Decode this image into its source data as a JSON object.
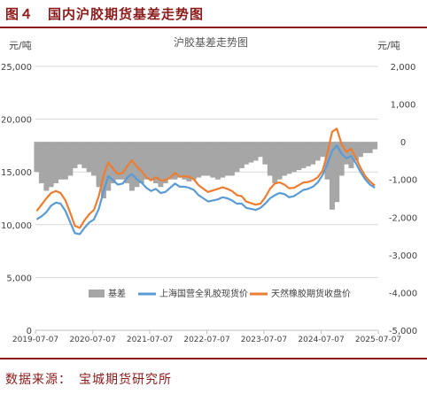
{
  "figure": {
    "title": "图４　国内沪胶期货基差走势图",
    "source": "数据来源：　宝城期货研究所"
  },
  "colors": {
    "brand": "#8b1a1a",
    "basis": "#a6a6a6",
    "spot": "#5b9bd5",
    "futures": "#ed7d31"
  },
  "chart_data": {
    "type": "line",
    "title": "沪胶基差走势图",
    "ylabel_left": "元/吨",
    "ylabel_right": "元/吨",
    "ylim_left": [
      0,
      25000
    ],
    "ylim_right": [
      -5000,
      2000
    ],
    "yticks_left": [
      "0",
      "5,000",
      "10,000",
      "15,000",
      "20,000",
      "25,000"
    ],
    "yticks_right": [
      "-5,000",
      "-4,000",
      "-3,000",
      "-2,000",
      "-1,000",
      "0",
      "1,000",
      "2,000"
    ],
    "x_ticks": [
      "2019-07-07",
      "2020-07-07",
      "2021-07-07",
      "2022-07-07",
      "2023-07-07",
      "2024-07-07",
      "2025-07-07"
    ],
    "x_range": [
      "2019-07-07",
      "2025-07-07"
    ],
    "legend_position": "bottom",
    "series": [
      {
        "name": "基差",
        "type": "area",
        "axis": "right",
        "x": [
          "2019-07",
          "2019-08",
          "2019-09",
          "2019-10",
          "2019-11",
          "2019-12",
          "2020-01",
          "2020-02",
          "2020-03",
          "2020-04",
          "2020-05",
          "2020-06",
          "2020-07",
          "2020-08",
          "2020-09",
          "2020-10",
          "2020-11",
          "2020-12",
          "2021-01",
          "2021-02",
          "2021-03",
          "2021-04",
          "2021-05",
          "2021-06",
          "2021-07",
          "2021-08",
          "2021-09",
          "2021-10",
          "2021-11",
          "2021-12",
          "2022-01",
          "2022-02",
          "2022-03",
          "2022-04",
          "2022-05",
          "2022-06",
          "2022-07",
          "2022-08",
          "2022-09",
          "2022-10",
          "2022-11",
          "2022-12",
          "2023-01",
          "2023-02",
          "2023-03",
          "2023-04",
          "2023-05",
          "2023-06",
          "2023-07",
          "2023-08",
          "2023-09",
          "2023-10",
          "2023-11",
          "2023-12",
          "2024-01",
          "2024-02",
          "2024-03",
          "2024-04",
          "2024-05",
          "2024-06",
          "2024-07",
          "2024-08",
          "2024-09",
          "2024-10",
          "2024-11",
          "2024-12",
          "2025-01",
          "2025-02",
          "2025-03",
          "2025-04",
          "2025-05",
          "2025-06"
        ],
        "values": [
          -800,
          -1100,
          -1300,
          -1200,
          -1100,
          -1000,
          -1000,
          -900,
          -700,
          -600,
          -700,
          -800,
          -900,
          -1200,
          -1500,
          -1300,
          -1100,
          -1000,
          -1000,
          -1100,
          -1300,
          -1200,
          -1100,
          -1000,
          -1000,
          -1100,
          -1200,
          -1100,
          -1000,
          -1000,
          -950,
          -1000,
          -1050,
          -1000,
          -950,
          -900,
          -900,
          -950,
          -1000,
          -950,
          -900,
          -900,
          -800,
          -700,
          -600,
          -550,
          -500,
          -400,
          -600,
          -900,
          -1100,
          -1000,
          -900,
          -850,
          -800,
          -750,
          -700,
          -650,
          -600,
          -500,
          -400,
          -1000,
          -1800,
          -1600,
          -900,
          -600,
          -700,
          -500,
          -400,
          -300,
          -300,
          -200
        ]
      },
      {
        "name": "上海国营全乳胶现货价",
        "type": "line",
        "axis": "left",
        "x": [
          "2019-07",
          "2019-08",
          "2019-09",
          "2019-10",
          "2019-11",
          "2019-12",
          "2020-01",
          "2020-02",
          "2020-03",
          "2020-04",
          "2020-05",
          "2020-06",
          "2020-07",
          "2020-08",
          "2020-09",
          "2020-10",
          "2020-11",
          "2020-12",
          "2021-01",
          "2021-02",
          "2021-03",
          "2021-04",
          "2021-05",
          "2021-06",
          "2021-07",
          "2021-08",
          "2021-09",
          "2021-10",
          "2021-11",
          "2021-12",
          "2022-01",
          "2022-02",
          "2022-03",
          "2022-04",
          "2022-05",
          "2022-06",
          "2022-07",
          "2022-08",
          "2022-09",
          "2022-10",
          "2022-11",
          "2022-12",
          "2023-01",
          "2023-02",
          "2023-03",
          "2023-04",
          "2023-05",
          "2023-06",
          "2023-07",
          "2023-08",
          "2023-09",
          "2023-10",
          "2023-11",
          "2023-12",
          "2024-01",
          "2024-02",
          "2024-03",
          "2024-04",
          "2024-05",
          "2024-06",
          "2024-07",
          "2024-08",
          "2024-09",
          "2024-10",
          "2024-11",
          "2024-12",
          "2025-01",
          "2025-02",
          "2025-03",
          "2025-04",
          "2025-05",
          "2025-06"
        ],
        "values": [
          10500,
          10800,
          11200,
          11800,
          12100,
          12000,
          11300,
          10200,
          9200,
          9100,
          9700,
          10200,
          10500,
          11500,
          13200,
          14600,
          14200,
          13800,
          13900,
          14500,
          14800,
          14300,
          14000,
          13500,
          13200,
          13400,
          13000,
          13100,
          13500,
          13900,
          13600,
          13600,
          13500,
          13300,
          12800,
          12500,
          12200,
          12300,
          12400,
          12600,
          12500,
          12300,
          12000,
          12000,
          11600,
          11500,
          11400,
          11600,
          12000,
          12500,
          12800,
          13000,
          12900,
          12600,
          12700,
          13000,
          13300,
          13400,
          13600,
          14000,
          14700,
          15700,
          17000,
          17500,
          16700,
          16300,
          16500,
          15800,
          15000,
          14300,
          13800,
          13500
        ]
      },
      {
        "name": "天然橡胶期货收盘价",
        "type": "line",
        "axis": "left",
        "x": [
          "2019-07",
          "2019-08",
          "2019-09",
          "2019-10",
          "2019-11",
          "2019-12",
          "2020-01",
          "2020-02",
          "2020-03",
          "2020-04",
          "2020-05",
          "2020-06",
          "2020-07",
          "2020-08",
          "2020-09",
          "2020-10",
          "2020-11",
          "2020-12",
          "2021-01",
          "2021-02",
          "2021-03",
          "2021-04",
          "2021-05",
          "2021-06",
          "2021-07",
          "2021-08",
          "2021-09",
          "2021-10",
          "2021-11",
          "2021-12",
          "2022-01",
          "2022-02",
          "2022-03",
          "2022-04",
          "2022-05",
          "2022-06",
          "2022-07",
          "2022-08",
          "2022-09",
          "2022-10",
          "2022-11",
          "2022-12",
          "2023-01",
          "2023-02",
          "2023-03",
          "2023-04",
          "2023-05",
          "2023-06",
          "2023-07",
          "2023-08",
          "2023-09",
          "2023-10",
          "2023-11",
          "2023-12",
          "2024-01",
          "2024-02",
          "2024-03",
          "2024-04",
          "2024-05",
          "2024-06",
          "2024-07",
          "2024-08",
          "2024-09",
          "2024-10",
          "2024-11",
          "2024-12",
          "2025-01",
          "2025-02",
          "2025-03",
          "2025-04",
          "2025-05",
          "2025-06"
        ],
        "values": [
          11300,
          11900,
          12500,
          13000,
          13200,
          13000,
          12300,
          11100,
          9900,
          9700,
          10400,
          11000,
          11400,
          12700,
          14700,
          15900,
          15300,
          14800,
          14900,
          15600,
          16100,
          15500,
          15100,
          14500,
          14200,
          14500,
          14200,
          14200,
          14500,
          14900,
          14550,
          14600,
          14550,
          14300,
          13750,
          13400,
          13100,
          13250,
          13400,
          13550,
          13400,
          13200,
          12800,
          12700,
          12200,
          12050,
          11900,
          12000,
          12600,
          13400,
          13900,
          14000,
          13800,
          13450,
          13500,
          13750,
          14000,
          14050,
          14200,
          14500,
          15100,
          16700,
          18800,
          19100,
          17600,
          16900,
          17200,
          16300,
          15400,
          14600,
          14100,
          13700
        ]
      }
    ]
  }
}
